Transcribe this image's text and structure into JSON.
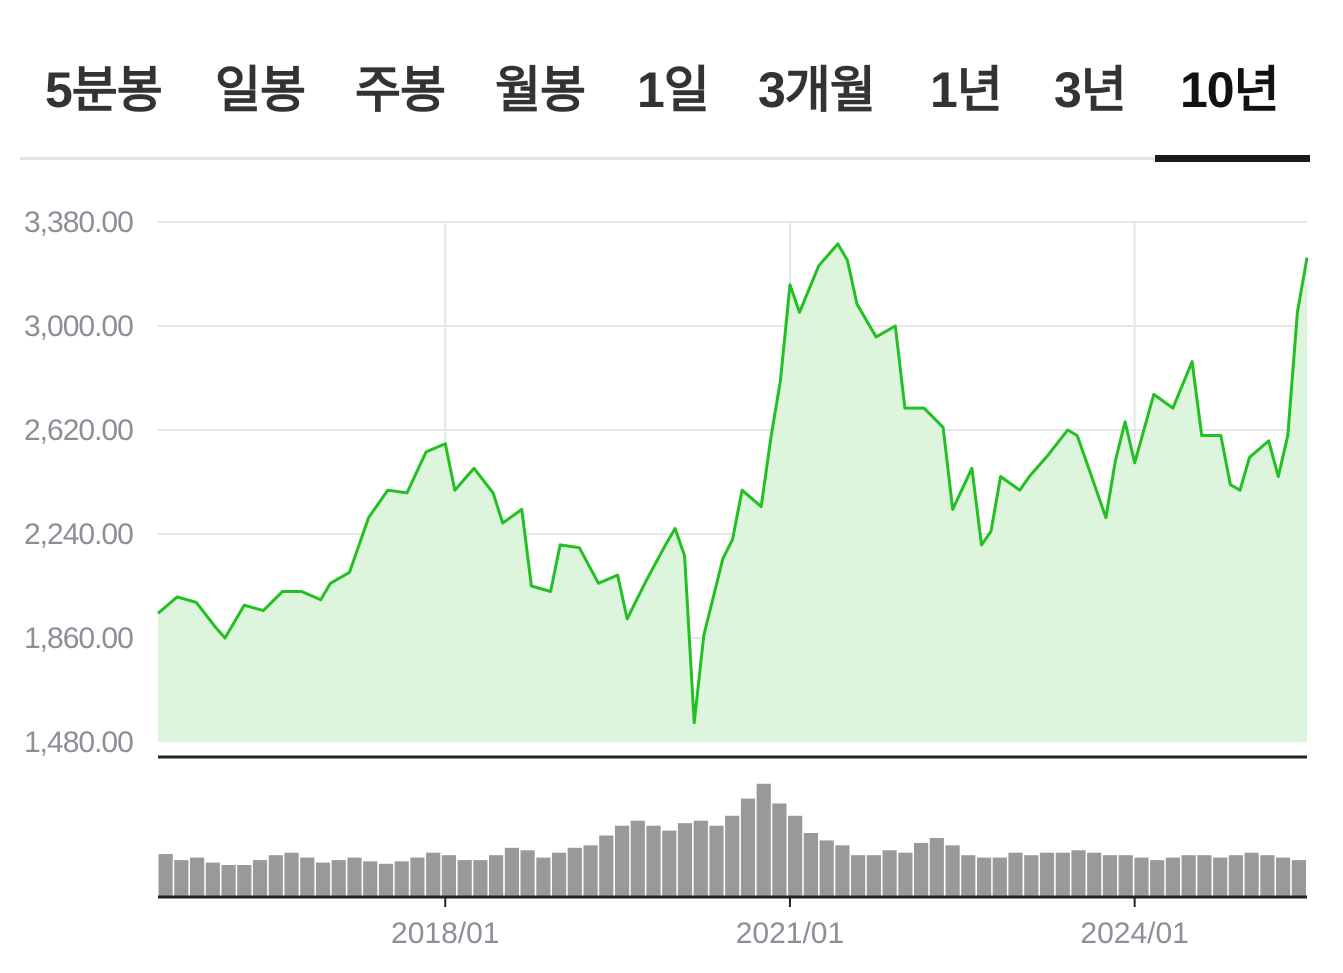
{
  "tabs": [
    {
      "label": "5분봉",
      "active": false
    },
    {
      "label": "일봉",
      "active": false
    },
    {
      "label": "주봉",
      "active": false
    },
    {
      "label": "월봉",
      "active": false
    },
    {
      "label": "1일",
      "active": false
    },
    {
      "label": "3개월",
      "active": false
    },
    {
      "label": "1년",
      "active": false
    },
    {
      "label": "3년",
      "active": false
    },
    {
      "label": "10년",
      "active": true
    }
  ],
  "colors": {
    "line": "#22c022",
    "area": "#dcf5dc",
    "grid": "#e6e6e6",
    "axis": "#222222",
    "volume": "#999999",
    "tick_text": "#8a8f98"
  },
  "chart_data": [
    {
      "type": "area",
      "xlabel": "",
      "ylabel": "",
      "ylim": [
        1480,
        3380
      ],
      "yticks": [
        "3,380.00",
        "3,000.00",
        "2,620.00",
        "2,240.00",
        "1,860.00",
        "1,480.00"
      ],
      "ytick_values": [
        3380,
        3000,
        2620,
        2240,
        1860,
        1480
      ],
      "xlim": [
        "2015-07",
        "2025-07"
      ],
      "xticks": [
        {
          "date": "2018-01",
          "label": "2018/01"
        },
        {
          "date": "2021-01",
          "label": "2021/01"
        },
        {
          "date": "2024-01",
          "label": "2024/01"
        }
      ],
      "grid": true,
      "series": [
        {
          "points": [
            [
              "2015-07",
              1950
            ],
            [
              "2015-09",
              2010
            ],
            [
              "2015-11",
              1990
            ],
            [
              "2016-01",
              1900
            ],
            [
              "2016-02",
              1860
            ],
            [
              "2016-04",
              1980
            ],
            [
              "2016-06",
              1960
            ],
            [
              "2016-08",
              2030
            ],
            [
              "2016-10",
              2030
            ],
            [
              "2016-12",
              2000
            ],
            [
              "2017-01",
              2060
            ],
            [
              "2017-03",
              2100
            ],
            [
              "2017-05",
              2300
            ],
            [
              "2017-07",
              2400
            ],
            [
              "2017-09",
              2390
            ],
            [
              "2017-11",
              2540
            ],
            [
              "2018-01",
              2570
            ],
            [
              "2018-02",
              2400
            ],
            [
              "2018-04",
              2480
            ],
            [
              "2018-06",
              2390
            ],
            [
              "2018-07",
              2280
            ],
            [
              "2018-09",
              2330
            ],
            [
              "2018-10",
              2050
            ],
            [
              "2018-12",
              2030
            ],
            [
              "2019-01",
              2200
            ],
            [
              "2019-03",
              2190
            ],
            [
              "2019-05",
              2060
            ],
            [
              "2019-07",
              2090
            ],
            [
              "2019-08",
              1930
            ],
            [
              "2019-10",
              2070
            ],
            [
              "2019-12",
              2200
            ],
            [
              "2020-01",
              2260
            ],
            [
              "2020-02",
              2160
            ],
            [
              "2020-03",
              1550
            ],
            [
              "2020-04",
              1870
            ],
            [
              "2020-06",
              2150
            ],
            [
              "2020-07",
              2220
            ],
            [
              "2020-08",
              2400
            ],
            [
              "2020-10",
              2340
            ],
            [
              "2020-11",
              2590
            ],
            [
              "2020-12",
              2800
            ],
            [
              "2021-01",
              3150
            ],
            [
              "2021-02",
              3050
            ],
            [
              "2021-04",
              3220
            ],
            [
              "2021-06",
              3300
            ],
            [
              "2021-07",
              3240
            ],
            [
              "2021-08",
              3080
            ],
            [
              "2021-10",
              2960
            ],
            [
              "2021-12",
              3000
            ],
            [
              "2022-01",
              2700
            ],
            [
              "2022-03",
              2700
            ],
            [
              "2022-05",
              2630
            ],
            [
              "2022-06",
              2330
            ],
            [
              "2022-08",
              2480
            ],
            [
              "2022-09",
              2200
            ],
            [
              "2022-10",
              2250
            ],
            [
              "2022-11",
              2450
            ],
            [
              "2023-01",
              2400
            ],
            [
              "2023-02",
              2450
            ],
            [
              "2023-04",
              2530
            ],
            [
              "2023-06",
              2620
            ],
            [
              "2023-07",
              2600
            ],
            [
              "2023-08",
              2500
            ],
            [
              "2023-10",
              2300
            ],
            [
              "2023-11",
              2510
            ],
            [
              "2023-12",
              2650
            ],
            [
              "2024-01",
              2500
            ],
            [
              "2024-03",
              2750
            ],
            [
              "2024-05",
              2700
            ],
            [
              "2024-07",
              2870
            ],
            [
              "2024-08",
              2600
            ],
            [
              "2024-10",
              2600
            ],
            [
              "2024-11",
              2420
            ],
            [
              "2024-12",
              2400
            ],
            [
              "2025-01",
              2520
            ],
            [
              "2025-03",
              2580
            ],
            [
              "2025-04",
              2450
            ],
            [
              "2025-05",
              2600
            ],
            [
              "2025-06",
              3050
            ],
            [
              "2025-07",
              3250
            ]
          ]
        }
      ]
    },
    {
      "type": "bar",
      "xlabel": "",
      "ylabel": "",
      "ylim": [
        0,
        10
      ],
      "series": [
        {
          "values": [
            3.5,
            3.0,
            3.2,
            2.8,
            2.6,
            2.6,
            3.0,
            3.4,
            3.6,
            3.2,
            2.8,
            3.0,
            3.2,
            2.9,
            2.7,
            2.9,
            3.2,
            3.6,
            3.4,
            3.0,
            3.0,
            3.4,
            4.0,
            3.8,
            3.2,
            3.6,
            4.0,
            4.2,
            5.0,
            5.8,
            6.2,
            5.8,
            5.4,
            6.0,
            6.2,
            5.8,
            6.6,
            8.0,
            9.2,
            7.6,
            6.6,
            5.2,
            4.6,
            4.2,
            3.4,
            3.4,
            3.8,
            3.6,
            4.4,
            4.8,
            4.2,
            3.4,
            3.2,
            3.2,
            3.6,
            3.4,
            3.6,
            3.6,
            3.8,
            3.6,
            3.4,
            3.4,
            3.2,
            3.0,
            3.2,
            3.4,
            3.4,
            3.2,
            3.4,
            3.6,
            3.4,
            3.2,
            3.0
          ]
        }
      ]
    }
  ]
}
